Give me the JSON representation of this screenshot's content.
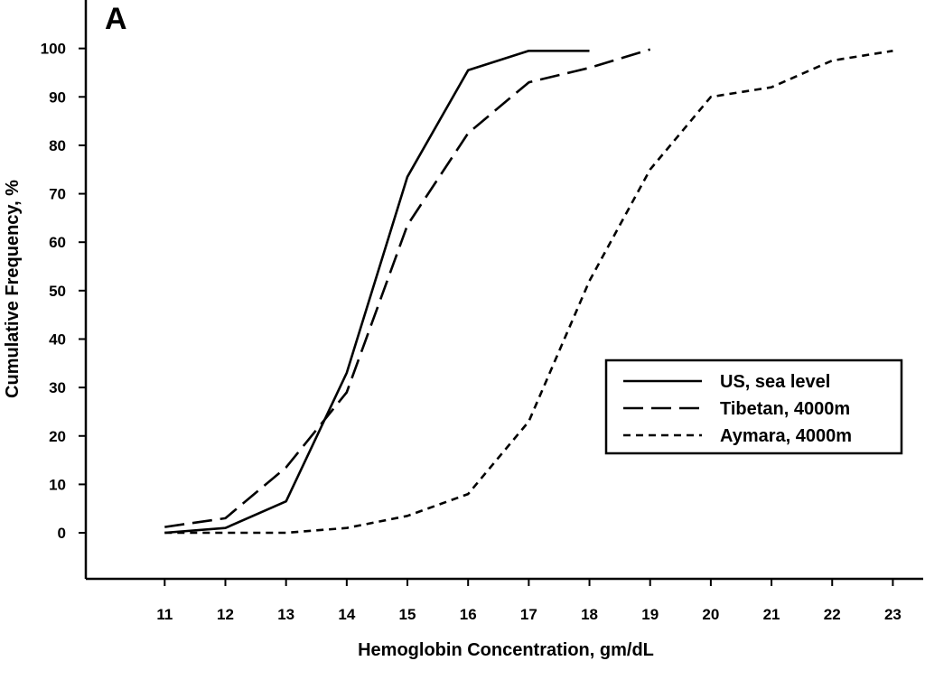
{
  "chart_data": {
    "type": "line",
    "panel_label": "A",
    "title": "",
    "xlabel": "Hemoglobin Concentration, gm/dL",
    "ylabel": "Cumulative Frequency, %",
    "xlim": [
      9.7,
      23.5
    ],
    "ylim": [
      -9.5,
      110
    ],
    "x_ticks": [
      11,
      12,
      13,
      14,
      15,
      16,
      17,
      18,
      19,
      20,
      21,
      22,
      23
    ],
    "y_ticks": [
      0,
      10,
      20,
      30,
      40,
      50,
      60,
      70,
      80,
      90,
      100
    ],
    "grid": false,
    "legend_position": "right",
    "series": [
      {
        "name": "US, sea level",
        "style": "solid",
        "x": [
          11,
          12,
          13,
          14,
          15,
          16,
          17,
          18
        ],
        "y": [
          0,
          1,
          6.5,
          33,
          73.5,
          95.5,
          99.5,
          99.5
        ]
      },
      {
        "name": "Tibetan, 4000m",
        "style": "long-dash",
        "x": [
          11,
          12,
          13,
          14,
          15,
          16,
          17,
          18,
          19
        ],
        "y": [
          1.2,
          3,
          13.5,
          29,
          63.5,
          82.5,
          93,
          96,
          99.8
        ]
      },
      {
        "name": "Aymara, 4000m",
        "style": "short-dash",
        "x": [
          11,
          12,
          13,
          14,
          15,
          16,
          17,
          18,
          19,
          20,
          21,
          22,
          23
        ],
        "y": [
          0,
          0,
          0,
          1,
          3.5,
          8,
          23,
          52,
          75,
          90,
          92,
          97.5,
          99.5
        ]
      }
    ]
  }
}
